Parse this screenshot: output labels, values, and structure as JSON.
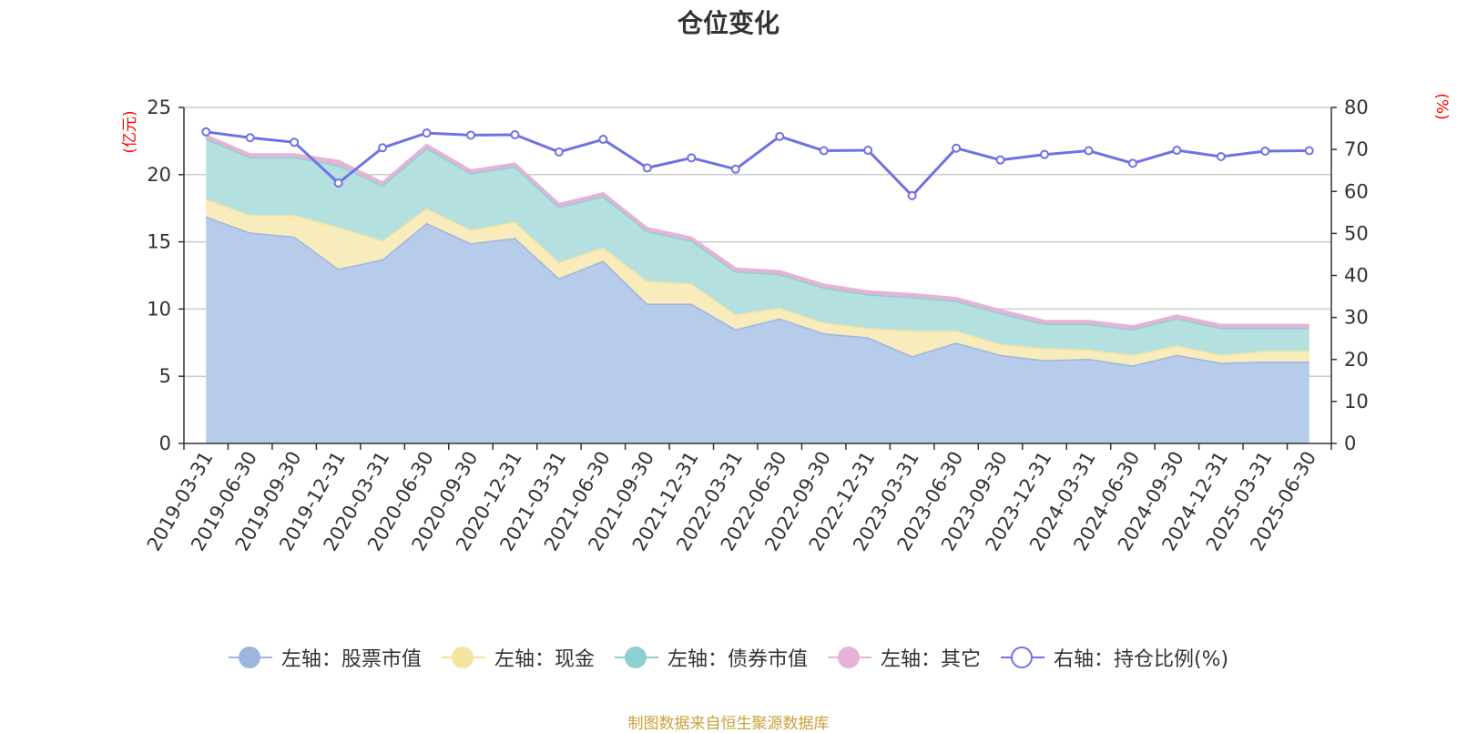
{
  "chart_data": {
    "type": "area",
    "title": "仓位变化",
    "left_axis": {
      "label": "(亿元)",
      "ylim": [
        0,
        25
      ],
      "ticks": [
        "0",
        "5",
        "10",
        "15",
        "20",
        "25"
      ]
    },
    "right_axis": {
      "label": "(%)",
      "ylim": [
        0,
        80
      ],
      "ticks": [
        "0",
        "10",
        "20",
        "30",
        "40",
        "50",
        "60",
        "70",
        "80"
      ]
    },
    "categories": [
      "2019-03-31",
      "2019-06-30",
      "2019-09-30",
      "2019-12-31",
      "2020-03-31",
      "2020-06-30",
      "2020-09-30",
      "2020-12-31",
      "2021-03-31",
      "2021-06-30",
      "2021-09-30",
      "2021-12-31",
      "2022-03-31",
      "2022-06-30",
      "2022-09-30",
      "2022-12-31",
      "2023-03-31",
      "2023-06-30",
      "2023-09-30",
      "2023-12-31",
      "2024-03-31",
      "2024-06-30",
      "2024-09-30",
      "2024-12-31",
      "2025-03-31",
      "2025-06-30"
    ],
    "stacked_series": [
      {
        "name": "左轴：股票市值",
        "axis": "left",
        "color": "#9db6e0",
        "fill": "#b7cbea",
        "values": [
          16.9,
          15.7,
          15.4,
          13.0,
          13.7,
          16.4,
          14.9,
          15.3,
          12.3,
          13.6,
          10.4,
          10.4,
          8.5,
          9.3,
          8.2,
          7.9,
          6.5,
          7.5,
          6.6,
          6.2,
          6.3,
          5.8,
          6.6,
          6.0,
          6.1,
          6.1
        ]
      },
      {
        "name": "左轴：现金",
        "axis": "left",
        "color": "#f5e3a0",
        "fill": "#f8ebbc",
        "values": [
          1.3,
          1.3,
          1.6,
          3.1,
          1.4,
          1.1,
          1.0,
          1.2,
          1.2,
          1.0,
          1.7,
          1.5,
          1.1,
          0.8,
          0.8,
          0.7,
          1.9,
          0.9,
          0.8,
          0.9,
          0.7,
          0.8,
          0.7,
          0.6,
          0.8,
          0.8
        ]
      },
      {
        "name": "左轴：债券市值",
        "axis": "left",
        "color": "#8fd0d0",
        "fill": "#b4e0e0",
        "values": [
          4.5,
          4.3,
          4.3,
          4.6,
          4.1,
          4.5,
          4.2,
          4.1,
          4.1,
          3.8,
          3.7,
          3.2,
          3.2,
          2.5,
          2.6,
          2.5,
          2.5,
          2.2,
          2.3,
          1.8,
          1.9,
          1.9,
          2.0,
          2.0,
          1.7,
          1.7
        ]
      },
      {
        "name": "左轴：其它",
        "axis": "left",
        "color": "#e6b3d8",
        "fill": "#e6b3d8",
        "values": [
          0.2,
          0.2,
          0.2,
          0.3,
          0.2,
          0.2,
          0.2,
          0.2,
          0.2,
          0.2,
          0.2,
          0.2,
          0.2,
          0.2,
          0.2,
          0.2,
          0.2,
          0.2,
          0.2,
          0.2,
          0.2,
          0.2,
          0.2,
          0.2,
          0.2,
          0.2
        ]
      }
    ],
    "line_series": {
      "name": "右轴：持仓比例(%)",
      "axis": "right",
      "color": "#7171e6",
      "values": [
        74.2,
        72.8,
        71.7,
        62.0,
        70.4,
        73.9,
        73.4,
        73.5,
        69.4,
        72.4,
        65.6,
        68.0,
        65.3,
        73.1,
        69.7,
        69.8,
        59.0,
        70.3,
        67.5,
        68.8,
        69.7,
        66.7,
        69.8,
        68.3,
        69.6,
        69.7
      ]
    },
    "grid": true,
    "legend_position": "bottom"
  },
  "legend": [
    {
      "label": "左轴：股票市值",
      "color": "#9db6e0",
      "hollow": false
    },
    {
      "label": "左轴：现金",
      "color": "#f5e3a0",
      "hollow": false
    },
    {
      "label": "左轴：债券市值",
      "color": "#8fd0d0",
      "hollow": false
    },
    {
      "label": "左轴：其它",
      "color": "#e6b3d8",
      "hollow": false
    },
    {
      "label": "右轴：持仓比例(%)",
      "color": "#7171e6",
      "hollow": true
    }
  ],
  "source_note": "制图数据来自恒生聚源数据库"
}
